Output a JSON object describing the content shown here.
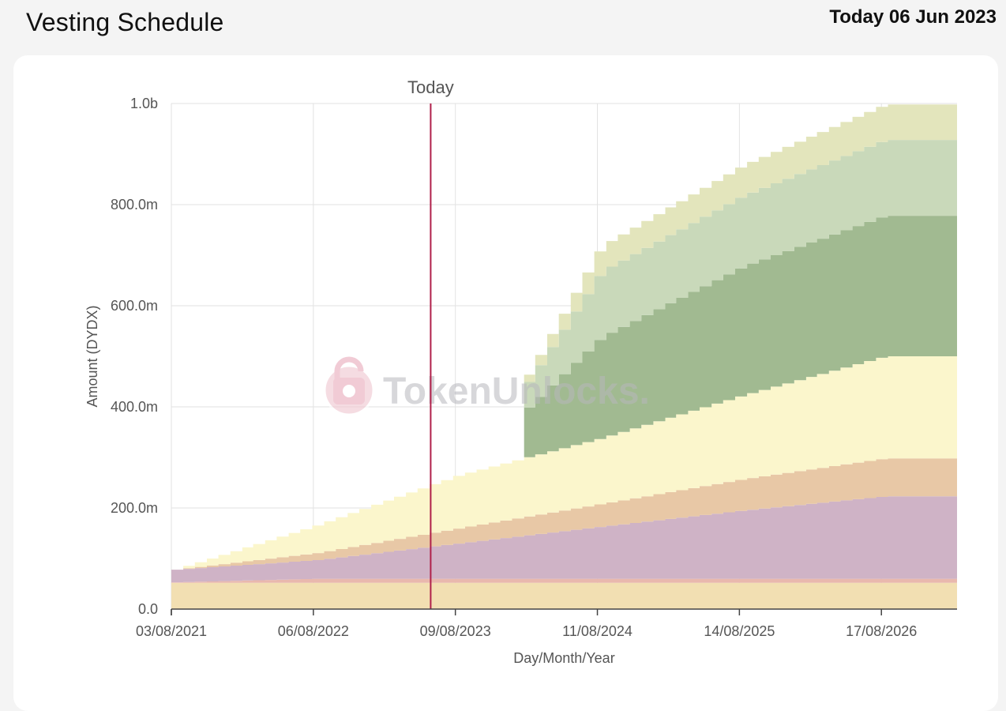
{
  "header": {
    "title": "Vesting Schedule",
    "today_label": "Today 06 Jun 2023"
  },
  "chart_data": {
    "type": "area",
    "stacked": true,
    "x_axis_label": "Day/Month/Year",
    "y_axis_label": "Amount (DYDX)",
    "ylim": [
      0,
      1000
    ],
    "y_unit": "m DYDX",
    "y_ticks": [
      {
        "value": 0,
        "label": "0.0"
      },
      {
        "value": 200,
        "label": "200.0m"
      },
      {
        "value": 400,
        "label": "400.0m"
      },
      {
        "value": 600,
        "label": "600.0m"
      },
      {
        "value": 800,
        "label": "800.0m"
      },
      {
        "value": 1000,
        "label": "1.0b"
      }
    ],
    "x_ticks": [
      "03/08/2021",
      "06/08/2022",
      "09/08/2023",
      "11/08/2024",
      "14/08/2025",
      "17/08/2026"
    ],
    "x_range": [
      "2021-08-03",
      "2027-03-01"
    ],
    "today_marker": {
      "date": "2023-06-06",
      "label": "Today"
    },
    "grid": true,
    "legend": "none",
    "series": [
      {
        "color": "#f2dfb2",
        "points": [
          [
            "2021-08-03",
            52
          ],
          [
            "2027-03-01",
            52
          ]
        ]
      },
      {
        "color": "#e9b8ad",
        "points": [
          [
            "2021-08-03",
            1
          ],
          [
            "2022-08-06",
            8
          ],
          [
            "2027-03-01",
            8
          ]
        ]
      },
      {
        "color": "#cfb3c6",
        "points": [
          [
            "2021-08-03",
            25
          ],
          [
            "2022-08-06",
            37
          ],
          [
            "2023-08-09",
            70
          ],
          [
            "2024-08-11",
            103
          ],
          [
            "2025-08-14",
            135
          ],
          [
            "2026-08-17",
            163
          ],
          [
            "2027-03-01",
            163
          ]
        ]
      },
      {
        "color": "#e8c8a6",
        "points": [
          [
            "2021-08-03",
            0
          ],
          [
            "2022-08-06",
            14
          ],
          [
            "2023-08-09",
            30
          ],
          [
            "2024-08-11",
            45
          ],
          [
            "2025-08-14",
            62
          ],
          [
            "2026-08-17",
            75
          ],
          [
            "2027-03-01",
            75
          ]
        ]
      },
      {
        "color": "#fbf6cc",
        "points": [
          [
            "2021-08-03",
            0
          ],
          [
            "2022-08-06",
            55
          ],
          [
            "2023-08-09",
            105
          ],
          [
            "2024-08-11",
            130
          ],
          [
            "2025-08-14",
            166
          ],
          [
            "2026-08-17",
            202
          ],
          [
            "2027-03-01",
            202
          ]
        ]
      },
      {
        "color": "#a1ba91",
        "points": [
          [
            "2021-08-03",
            0
          ],
          [
            "2024-01-08",
            0
          ],
          [
            "2024-01-09",
            85
          ],
          [
            "2024-08-11",
            200
          ],
          [
            "2025-08-14",
            255
          ],
          [
            "2026-08-17",
            278
          ],
          [
            "2027-03-01",
            278
          ]
        ]
      },
      {
        "color": "#c9d9ba",
        "points": [
          [
            "2021-08-03",
            0
          ],
          [
            "2024-01-08",
            0
          ],
          [
            "2024-01-09",
            40
          ],
          [
            "2024-08-11",
            130
          ],
          [
            "2025-08-14",
            140
          ],
          [
            "2026-08-17",
            150
          ],
          [
            "2027-03-01",
            150
          ]
        ]
      },
      {
        "color": "#e3e5bc",
        "points": [
          [
            "2021-08-03",
            0
          ],
          [
            "2024-01-08",
            0
          ],
          [
            "2024-01-09",
            10
          ],
          [
            "2024-08-11",
            50
          ],
          [
            "2025-08-14",
            60
          ],
          [
            "2026-08-17",
            70
          ],
          [
            "2027-03-01",
            70
          ]
        ]
      }
    ]
  },
  "watermark": {
    "text": "TokenUnlocks.",
    "icon": "padlock-icon"
  }
}
